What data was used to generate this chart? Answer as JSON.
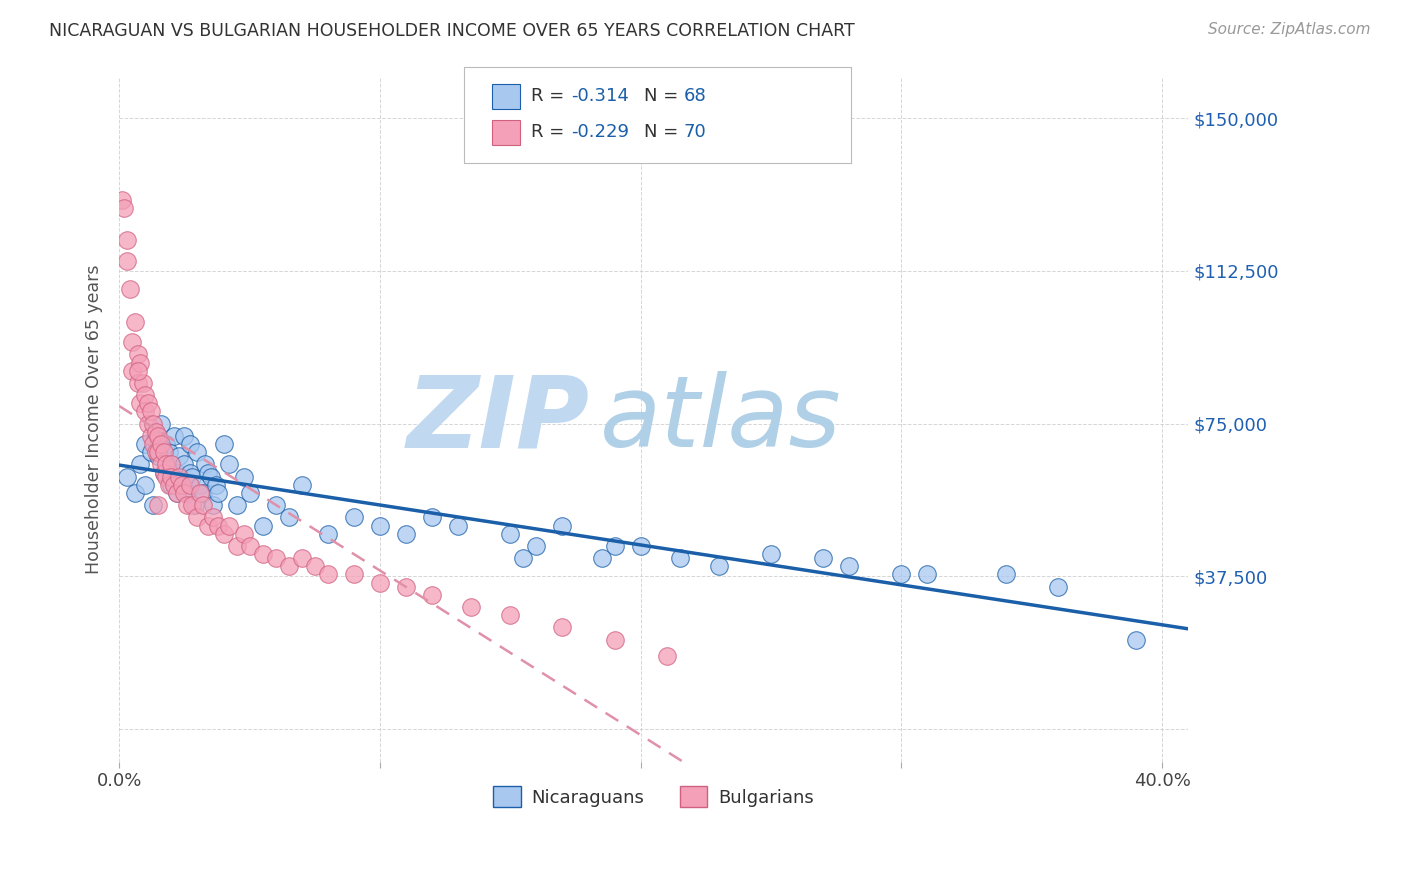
{
  "title": "NICARAGUAN VS BULGARIAN HOUSEHOLDER INCOME OVER 65 YEARS CORRELATION CHART",
  "source": "Source: ZipAtlas.com",
  "ylabel": "Householder Income Over 65 years",
  "x_tick_positions": [
    0.0,
    0.1,
    0.2,
    0.3,
    0.4
  ],
  "x_tick_labels": [
    "0.0%",
    "",
    "",
    "",
    "40.0%"
  ],
  "y_tick_positions": [
    0,
    37500,
    75000,
    112500,
    150000
  ],
  "y_tick_labels": [
    "",
    "$37,500",
    "$75,000",
    "$112,500",
    "$150,000"
  ],
  "xlim": [
    0.0,
    0.41
  ],
  "ylim": [
    -8000,
    160000
  ],
  "scatter_color_nicaraguan": "#a8c8f0",
  "scatter_color_bulgarian": "#f4a0b8",
  "line_color_nicaraguan": "#1a5fa8",
  "line_color_bulgarian_dash": "#e090a8",
  "watermark_zip": "ZIP",
  "watermark_atlas": "atlas",
  "watermark_color_zip": "#c0d8f0",
  "watermark_color_atlas": "#b0d0e8",
  "background_color": "#ffffff",
  "title_color": "#333333",
  "source_color": "#999999",
  "axis_label_color": "#555555",
  "tick_label_color_y": "#2060b0",
  "tick_label_color_x": "#444444",
  "grid_color": "#cccccc",
  "legend_r_color": "#333333",
  "legend_val_color": "#1a5fa8",
  "nicaraguan_x": [
    0.003,
    0.006,
    0.008,
    0.01,
    0.01,
    0.012,
    0.013,
    0.014,
    0.015,
    0.016,
    0.017,
    0.018,
    0.019,
    0.02,
    0.02,
    0.021,
    0.022,
    0.022,
    0.023,
    0.024,
    0.025,
    0.025,
    0.026,
    0.027,
    0.027,
    0.028,
    0.029,
    0.03,
    0.031,
    0.032,
    0.033,
    0.034,
    0.035,
    0.036,
    0.037,
    0.038,
    0.04,
    0.042,
    0.045,
    0.048,
    0.05,
    0.055,
    0.06,
    0.065,
    0.07,
    0.08,
    0.09,
    0.1,
    0.11,
    0.12,
    0.13,
    0.15,
    0.16,
    0.17,
    0.185,
    0.2,
    0.215,
    0.23,
    0.25,
    0.27,
    0.3,
    0.34,
    0.36,
    0.39,
    0.28,
    0.31,
    0.19,
    0.155
  ],
  "nicaraguan_y": [
    62000,
    58000,
    65000,
    60000,
    70000,
    68000,
    55000,
    72000,
    67000,
    75000,
    63000,
    70000,
    68000,
    65000,
    60000,
    72000,
    63000,
    58000,
    67000,
    60000,
    65000,
    72000,
    58000,
    63000,
    70000,
    62000,
    55000,
    68000,
    60000,
    58000,
    65000,
    63000,
    62000,
    55000,
    60000,
    58000,
    70000,
    65000,
    55000,
    62000,
    58000,
    50000,
    55000,
    52000,
    60000,
    48000,
    52000,
    50000,
    48000,
    52000,
    50000,
    48000,
    45000,
    50000,
    42000,
    45000,
    42000,
    40000,
    43000,
    42000,
    38000,
    38000,
    35000,
    22000,
    40000,
    38000,
    45000,
    42000
  ],
  "bulgarian_x": [
    0.001,
    0.002,
    0.003,
    0.004,
    0.005,
    0.005,
    0.006,
    0.007,
    0.007,
    0.008,
    0.008,
    0.009,
    0.01,
    0.01,
    0.011,
    0.011,
    0.012,
    0.012,
    0.013,
    0.013,
    0.014,
    0.014,
    0.015,
    0.015,
    0.016,
    0.016,
    0.017,
    0.017,
    0.018,
    0.018,
    0.019,
    0.02,
    0.02,
    0.021,
    0.022,
    0.023,
    0.024,
    0.025,
    0.026,
    0.027,
    0.028,
    0.03,
    0.031,
    0.032,
    0.034,
    0.036,
    0.038,
    0.04,
    0.042,
    0.045,
    0.048,
    0.05,
    0.055,
    0.06,
    0.065,
    0.07,
    0.075,
    0.08,
    0.09,
    0.1,
    0.11,
    0.12,
    0.135,
    0.15,
    0.17,
    0.19,
    0.21,
    0.003,
    0.007,
    0.015
  ],
  "bulgarian_y": [
    130000,
    128000,
    120000,
    108000,
    95000,
    88000,
    100000,
    92000,
    85000,
    90000,
    80000,
    85000,
    82000,
    78000,
    80000,
    75000,
    78000,
    72000,
    75000,
    70000,
    73000,
    68000,
    72000,
    68000,
    70000,
    65000,
    68000,
    63000,
    65000,
    62000,
    60000,
    65000,
    62000,
    60000,
    58000,
    62000,
    60000,
    58000,
    55000,
    60000,
    55000,
    52000,
    58000,
    55000,
    50000,
    52000,
    50000,
    48000,
    50000,
    45000,
    48000,
    45000,
    43000,
    42000,
    40000,
    42000,
    40000,
    38000,
    38000,
    36000,
    35000,
    33000,
    30000,
    28000,
    25000,
    22000,
    18000,
    115000,
    88000,
    55000
  ]
}
